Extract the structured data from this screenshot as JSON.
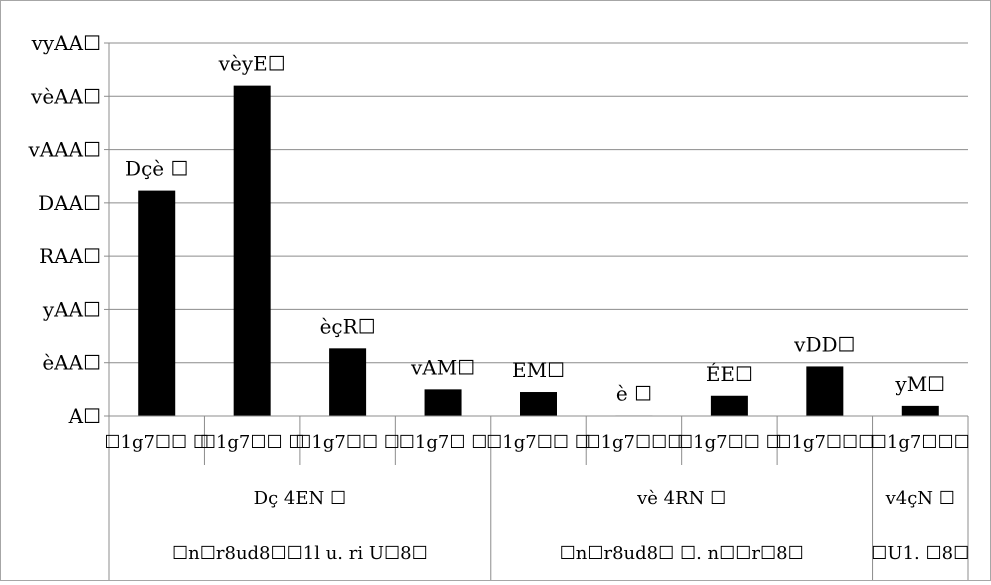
{
  "chart_data": {
    "type": "bar",
    "title": "",
    "xlabel": "",
    "ylabel": "",
    "ylim": [
      0,
      700
    ],
    "y_ticks": [
      {
        "value": 0,
        "label": "A☐"
      },
      {
        "value": 100,
        "label": "èAA☐"
      },
      {
        "value": 200,
        "label": "yAA☐"
      },
      {
        "value": 300,
        "label": "RAA☐"
      },
      {
        "value": 400,
        "label": "DAA☐"
      },
      {
        "value": 500,
        "label": "vAAA☐"
      },
      {
        "value": 600,
        "label": "vèAA☐"
      },
      {
        "value": 700,
        "label": "vyAA☐"
      }
    ],
    "grid": true,
    "legend": "none",
    "bar_color": "#000000",
    "grid_color": "#8c8c8c",
    "categories": [
      "☐1g7☐☐ ☐",
      "☐1g7☐☐ ☐",
      "☐1g7☐☐ ☐",
      "☐1g7☐ ☐",
      "☐1g7☐☐ ☐",
      "☐1g7☐☐☐",
      "☐1g7☐☐ ☐",
      "☐1g7☐☐☐",
      "☐1g7☐☐☐"
    ],
    "values": [
      423,
      620,
      127,
      50,
      45,
      1,
      38,
      93,
      19
    ],
    "data_labels": [
      "Dçè ☐",
      "vèyE☐",
      "èçR☐",
      "vAM☐",
      "EM☐",
      "è ☐",
      "ÉE☐",
      "vDD☐",
      "yM☐"
    ],
    "group_levels": [
      [
        {
          "label": "Dç 4EN ☐",
          "start": 0,
          "span": 4
        },
        {
          "label": "vè 4RN ☐",
          "start": 4,
          "span": 4
        },
        {
          "label": "v4çN ☐",
          "start": 8,
          "span": 1
        }
      ],
      [
        {
          "label": "☐n☐r8ud8☐☐1l   u. ri U☐8☐",
          "start": 0,
          "span": 4
        },
        {
          "label": "☐n☐r8ud8☐ ☐. n☐☐r☐8☐",
          "start": 4,
          "span": 4
        },
        {
          "label": "☐U1. ☐8☐",
          "start": 8,
          "span": 1
        }
      ]
    ]
  }
}
